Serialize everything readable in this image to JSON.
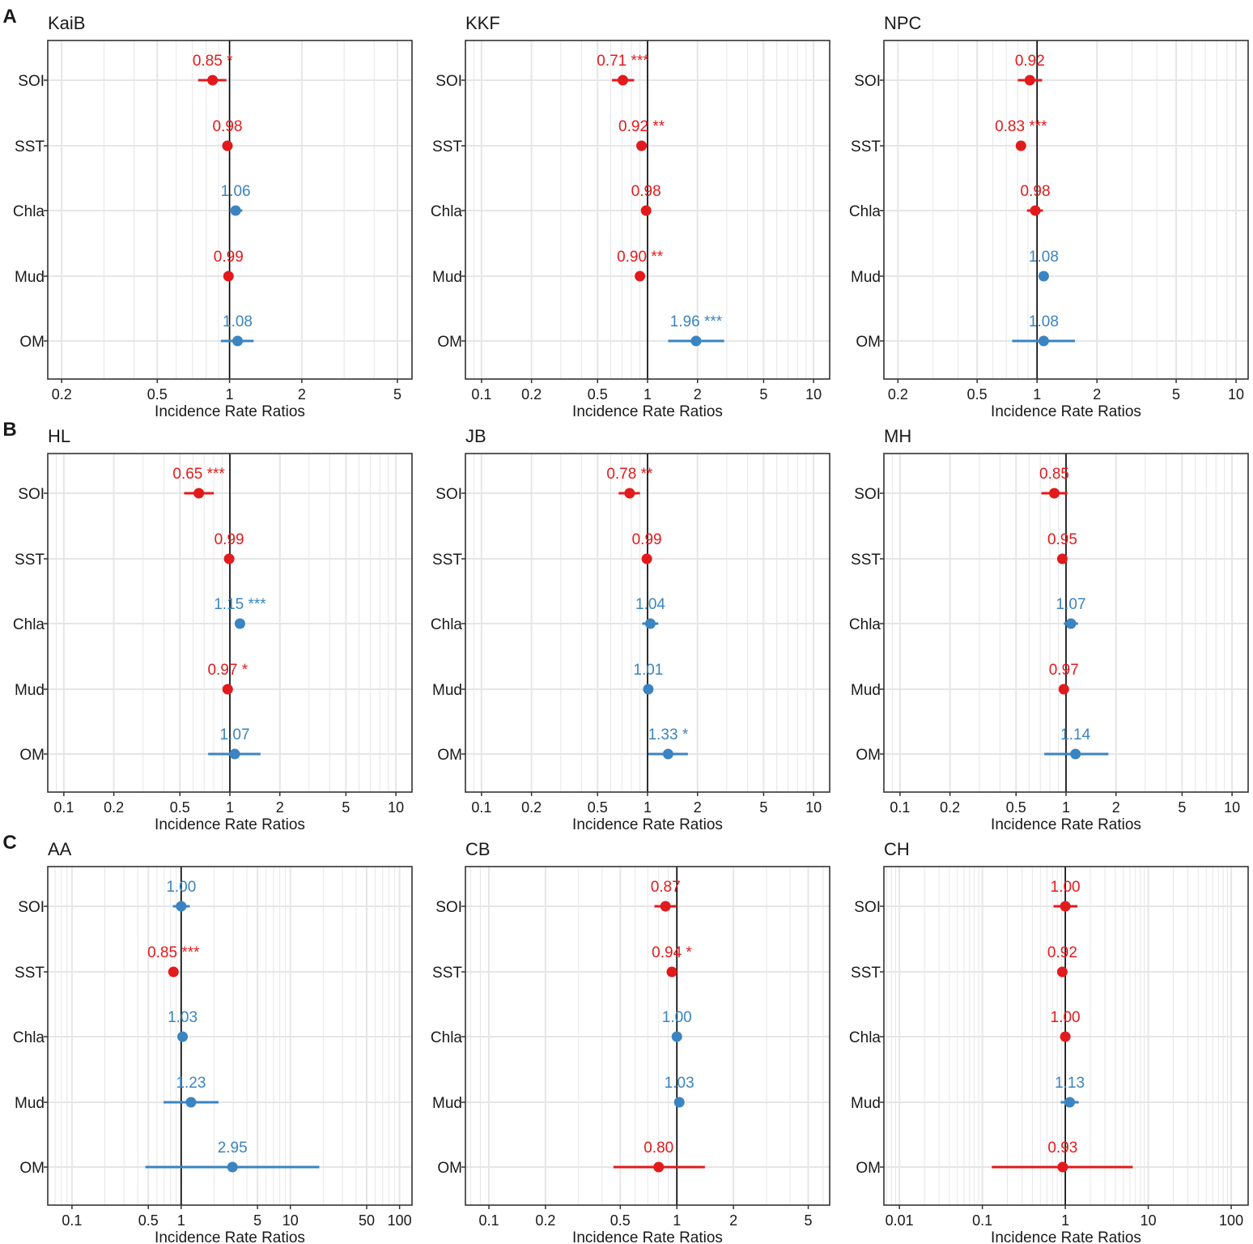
{
  "figure": {
    "rows": [
      "A",
      "B",
      "C"
    ],
    "xlabel": "Incidence Rate Ratios",
    "reference_line": 1,
    "colors": {
      "positive": "#3a84c1",
      "negative": "#e31a1c",
      "grid": "#e6e6e6",
      "axis": "#333333",
      "text": "#1a1a1a",
      "background": "#ffffff"
    }
  },
  "chart_data": [
    {
      "type": "forest",
      "row": "A",
      "title": "KaiB",
      "xlabel": "Incidence Rate Ratios",
      "xscale": "log",
      "xlim": [
        0.175,
        5.75
      ],
      "ticks": [
        0.2,
        0.5,
        1,
        2,
        5
      ],
      "tick_labels": [
        "0.2",
        "0.5",
        "1",
        "2",
        "5"
      ],
      "variables": [
        "SOI",
        "SST",
        "Chla",
        "Mud",
        "OM"
      ],
      "estimates": [
        {
          "value": 0.85,
          "low": 0.74,
          "high": 0.97,
          "label": "0.85 *",
          "direction": "negative"
        },
        {
          "value": 0.98,
          "low": 0.97,
          "high": 0.99,
          "label": "0.98",
          "direction": "negative"
        },
        {
          "value": 1.06,
          "low": 1.0,
          "high": 1.13,
          "label": "1.06",
          "direction": "positive"
        },
        {
          "value": 0.99,
          "low": 0.98,
          "high": 1.0,
          "label": "0.99",
          "direction": "negative"
        },
        {
          "value": 1.08,
          "low": 0.92,
          "high": 1.26,
          "label": "1.08",
          "direction": "positive"
        }
      ]
    },
    {
      "type": "forest",
      "row": "A",
      "title": "KKF",
      "xlabel": "Incidence Rate Ratios",
      "xscale": "log",
      "xlim": [
        0.08,
        12.5
      ],
      "ticks": [
        0.1,
        0.2,
        0.5,
        1,
        2,
        5,
        10
      ],
      "tick_labels": [
        "0.1",
        "0.2",
        "0.5",
        "1",
        "2",
        "5",
        "10"
      ],
      "variables": [
        "SOI",
        "SST",
        "Chla",
        "Mud",
        "OM"
      ],
      "estimates": [
        {
          "value": 0.71,
          "low": 0.61,
          "high": 0.83,
          "label": "0.71 ***",
          "direction": "negative"
        },
        {
          "value": 0.92,
          "low": 0.89,
          "high": 0.95,
          "label": "0.92 **",
          "direction": "negative"
        },
        {
          "value": 0.98,
          "low": 0.93,
          "high": 1.03,
          "label": "0.98",
          "direction": "negative"
        },
        {
          "value": 0.9,
          "low": 0.86,
          "high": 0.94,
          "label": "0.90 **",
          "direction": "negative"
        },
        {
          "value": 1.96,
          "low": 1.33,
          "high": 2.89,
          "label": "1.96 ***",
          "direction": "positive"
        }
      ]
    },
    {
      "type": "forest",
      "row": "A",
      "title": "NPC",
      "xlabel": "Incidence Rate Ratios",
      "xscale": "log",
      "xlim": [
        0.17,
        11.5
      ],
      "ticks": [
        0.2,
        0.5,
        1,
        2,
        5,
        10
      ],
      "tick_labels": [
        "0.2",
        "0.5",
        "1",
        "2",
        "5",
        "10"
      ],
      "variables": [
        "SOI",
        "SST",
        "Chla",
        "Mud",
        "OM"
      ],
      "estimates": [
        {
          "value": 0.92,
          "low": 0.8,
          "high": 1.06,
          "label": "0.92",
          "direction": "negative"
        },
        {
          "value": 0.83,
          "low": 0.81,
          "high": 0.85,
          "label": "0.83 ***",
          "direction": "negative"
        },
        {
          "value": 0.98,
          "low": 0.89,
          "high": 1.07,
          "label": "0.98",
          "direction": "negative"
        },
        {
          "value": 1.08,
          "low": 1.03,
          "high": 1.14,
          "label": "1.08",
          "direction": "positive"
        },
        {
          "value": 1.08,
          "low": 0.75,
          "high": 1.55,
          "label": "1.08",
          "direction": "positive"
        }
      ]
    },
    {
      "type": "forest",
      "row": "B",
      "title": "HL",
      "xlabel": "Incidence Rate Ratios",
      "xscale": "log",
      "xlim": [
        0.08,
        12.5
      ],
      "ticks": [
        0.1,
        0.2,
        0.5,
        1,
        2,
        5,
        10
      ],
      "tick_labels": [
        "0.1",
        "0.2",
        "0.5",
        "1",
        "2",
        "5",
        "10"
      ],
      "variables": [
        "SOI",
        "SST",
        "Chla",
        "Mud",
        "OM"
      ],
      "estimates": [
        {
          "value": 0.65,
          "low": 0.53,
          "high": 0.8,
          "label": "0.65 ***",
          "direction": "negative"
        },
        {
          "value": 0.99,
          "low": 0.98,
          "high": 1.0,
          "label": "0.99",
          "direction": "negative"
        },
        {
          "value": 1.15,
          "low": 1.11,
          "high": 1.19,
          "label": "1.15 ***",
          "direction": "positive"
        },
        {
          "value": 0.97,
          "low": 0.95,
          "high": 0.99,
          "label": "0.97 *",
          "direction": "negative"
        },
        {
          "value": 1.07,
          "low": 0.74,
          "high": 1.53,
          "label": "1.07",
          "direction": "positive"
        }
      ]
    },
    {
      "type": "forest",
      "row": "B",
      "title": "JB",
      "xlabel": "Incidence Rate Ratios",
      "xscale": "log",
      "xlim": [
        0.08,
        12.5
      ],
      "ticks": [
        0.1,
        0.2,
        0.5,
        1,
        2,
        5,
        10
      ],
      "tick_labels": [
        "0.1",
        "0.2",
        "0.5",
        "1",
        "2",
        "5",
        "10"
      ],
      "variables": [
        "SOI",
        "SST",
        "Chla",
        "Mud",
        "OM"
      ],
      "estimates": [
        {
          "value": 0.78,
          "low": 0.67,
          "high": 0.9,
          "label": "0.78 **",
          "direction": "negative"
        },
        {
          "value": 0.99,
          "low": 0.97,
          "high": 1.01,
          "label": "0.99",
          "direction": "negative"
        },
        {
          "value": 1.04,
          "low": 0.93,
          "high": 1.16,
          "label": "1.04",
          "direction": "positive"
        },
        {
          "value": 1.01,
          "low": 0.99,
          "high": 1.03,
          "label": "1.01",
          "direction": "positive"
        },
        {
          "value": 1.33,
          "low": 1.01,
          "high": 1.75,
          "label": "1.33 *",
          "direction": "positive"
        }
      ]
    },
    {
      "type": "forest",
      "row": "B",
      "title": "MH",
      "xlabel": "Incidence Rate Ratios",
      "xscale": "log",
      "xlim": [
        0.08,
        12.5
      ],
      "ticks": [
        0.1,
        0.2,
        0.5,
        1,
        2,
        5,
        10
      ],
      "tick_labels": [
        "0.1",
        "0.2",
        "0.5",
        "1",
        "2",
        "5",
        "10"
      ],
      "variables": [
        "SOI",
        "SST",
        "Chla",
        "Mud",
        "OM"
      ],
      "estimates": [
        {
          "value": 0.85,
          "low": 0.71,
          "high": 1.02,
          "label": "0.85",
          "direction": "negative"
        },
        {
          "value": 0.95,
          "low": 0.93,
          "high": 0.97,
          "label": "0.95",
          "direction": "negative"
        },
        {
          "value": 1.07,
          "low": 0.97,
          "high": 1.18,
          "label": "1.07",
          "direction": "positive"
        },
        {
          "value": 0.97,
          "low": 0.95,
          "high": 0.99,
          "label": "0.97",
          "direction": "negative"
        },
        {
          "value": 1.14,
          "low": 0.74,
          "high": 1.8,
          "label": "1.14",
          "direction": "positive"
        }
      ]
    },
    {
      "type": "forest",
      "row": "C",
      "title": "AA",
      "xlabel": "Incidence Rate Ratios",
      "xscale": "log",
      "xlim": [
        0.06,
        130
      ],
      "ticks": [
        0.1,
        0.5,
        1,
        5,
        10,
        50,
        100
      ],
      "tick_labels": [
        "0.1",
        "0.5",
        "1",
        "5",
        "10",
        "50",
        "100"
      ],
      "variables": [
        "SOI",
        "SST",
        "Chla",
        "Mud",
        "OM"
      ],
      "estimates": [
        {
          "value": 1.0,
          "low": 0.84,
          "high": 1.2,
          "label": "1.00",
          "direction": "positive"
        },
        {
          "value": 0.85,
          "low": 0.82,
          "high": 0.88,
          "label": "0.85 ***",
          "direction": "negative"
        },
        {
          "value": 1.03,
          "low": 0.98,
          "high": 1.08,
          "label": "1.03",
          "direction": "positive"
        },
        {
          "value": 1.23,
          "low": 0.69,
          "high": 2.2,
          "label": "1.23",
          "direction": "positive"
        },
        {
          "value": 2.95,
          "low": 0.47,
          "high": 18.4,
          "label": "2.95",
          "direction": "positive"
        }
      ]
    },
    {
      "type": "forest",
      "row": "C",
      "title": "CB",
      "xlabel": "Incidence Rate Ratios",
      "xscale": "log",
      "xlim": [
        0.075,
        6.5
      ],
      "ticks": [
        0.1,
        0.2,
        0.5,
        1,
        2,
        5
      ],
      "tick_labels": [
        "0.1",
        "0.2",
        "0.5",
        "1",
        "2",
        "5"
      ],
      "variables": [
        "SOI",
        "SST",
        "Chla",
        "Mud",
        "OM"
      ],
      "estimates": [
        {
          "value": 0.87,
          "low": 0.76,
          "high": 1.0,
          "label": "0.87",
          "direction": "negative"
        },
        {
          "value": 0.94,
          "low": 0.9,
          "high": 0.98,
          "label": "0.94 *",
          "direction": "negative"
        },
        {
          "value": 1.0,
          "low": 0.97,
          "high": 1.03,
          "label": "1.00",
          "direction": "positive"
        },
        {
          "value": 1.03,
          "low": 0.99,
          "high": 1.07,
          "label": "1.03",
          "direction": "positive"
        },
        {
          "value": 0.8,
          "low": 0.46,
          "high": 1.41,
          "label": "0.80",
          "direction": "negative"
        }
      ]
    },
    {
      "type": "forest",
      "row": "C",
      "title": "CH",
      "xlabel": "Incidence Rate Ratios",
      "xscale": "log",
      "xlim": [
        0.0065,
        160
      ],
      "ticks": [
        0.01,
        0.1,
        1,
        10,
        100
      ],
      "tick_labels": [
        "0.01",
        "0.1",
        "1",
        "10",
        "100"
      ],
      "variables": [
        "SOI",
        "SST",
        "Chla",
        "Mud",
        "OM"
      ],
      "estimates": [
        {
          "value": 1.0,
          "low": 0.72,
          "high": 1.4,
          "label": "1.00",
          "direction": "negative"
        },
        {
          "value": 0.92,
          "low": 0.85,
          "high": 0.99,
          "label": "0.92",
          "direction": "negative"
        },
        {
          "value": 1.0,
          "low": 0.93,
          "high": 1.07,
          "label": "1.00",
          "direction": "negative"
        },
        {
          "value": 1.13,
          "low": 0.88,
          "high": 1.45,
          "label": "1.13",
          "direction": "positive"
        },
        {
          "value": 0.93,
          "low": 0.13,
          "high": 6.5,
          "label": "0.93",
          "direction": "negative"
        }
      ]
    }
  ]
}
